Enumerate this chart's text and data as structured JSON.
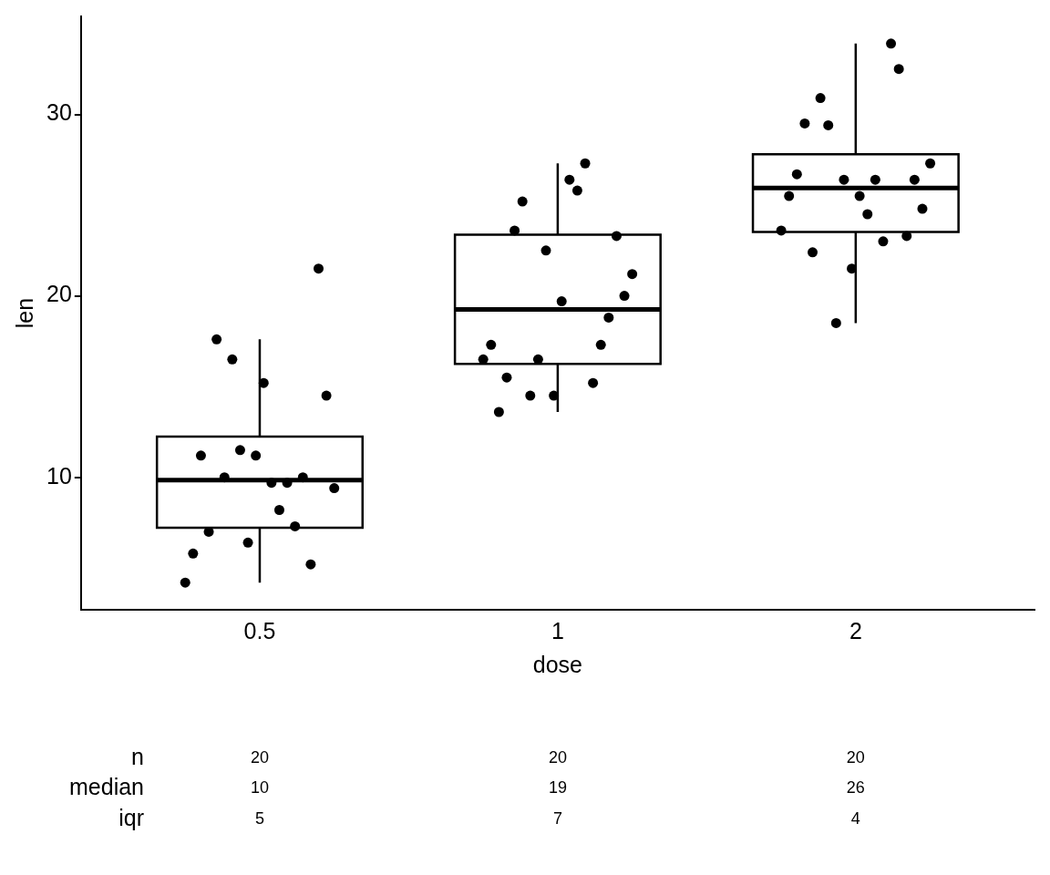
{
  "chart_data": {
    "type": "box",
    "xlabel": "dose",
    "ylabel": "len",
    "categories": [
      "0.5",
      "1",
      "2"
    ],
    "ylim": [
      2.7,
      35.4
    ],
    "yticks": [
      10,
      20,
      30
    ],
    "boxes": [
      {
        "low": 4.2,
        "q1": 7.225,
        "median": 9.85,
        "q3": 12.25,
        "high": 17.6
      },
      {
        "low": 13.6,
        "q1": 16.25,
        "median": 19.25,
        "q3": 23.375,
        "high": 27.3
      },
      {
        "low": 18.5,
        "q1": 23.525,
        "median": 25.95,
        "q3": 27.8,
        "high": 33.9
      }
    ],
    "series": [
      {
        "type": "scatter",
        "color": "#000000",
        "marker": "circle",
        "x": [
          "0.5",
          "0.5",
          "0.5",
          "0.5",
          "0.5",
          "0.5",
          "0.5",
          "0.5",
          "0.5",
          "0.5",
          "0.5",
          "0.5",
          "0.5",
          "0.5",
          "0.5",
          "0.5",
          "0.5",
          "0.5",
          "0.5",
          "0.5",
          "1",
          "1",
          "1",
          "1",
          "1",
          "1",
          "1",
          "1",
          "1",
          "1",
          "1",
          "1",
          "1",
          "1",
          "1",
          "1",
          "1",
          "1",
          "1",
          "1",
          "2",
          "2",
          "2",
          "2",
          "2",
          "2",
          "2",
          "2",
          "2",
          "2",
          "2",
          "2",
          "2",
          "2",
          "2",
          "2",
          "2",
          "2",
          "2",
          "2"
        ],
        "values": [
          4.2,
          11.5,
          7.3,
          5.8,
          6.4,
          10,
          11.2,
          11.2,
          5.2,
          7,
          15.2,
          21.5,
          17.6,
          9.7,
          14.5,
          10,
          8.2,
          9.4,
          16.5,
          9.7,
          16.5,
          16.5,
          15.2,
          17.3,
          22.5,
          17.3,
          13.6,
          14.5,
          18.8,
          15.5,
          19.7,
          23.3,
          23.6,
          26.4,
          20,
          25.2,
          25.8,
          21.2,
          14.5,
          27.3,
          23.6,
          18.5,
          33.9,
          25.5,
          26.4,
          32.5,
          26.7,
          21.5,
          23.3,
          29.5,
          25.5,
          26.4,
          22.4,
          24.5,
          24.8,
          30.9,
          26.4,
          27.3,
          29.4,
          23
        ]
      }
    ],
    "annotations": [
      "n",
      "20",
      "20",
      "20",
      "median",
      "10",
      "19",
      "26",
      "iqr",
      "5",
      "7",
      "4"
    ]
  }
}
